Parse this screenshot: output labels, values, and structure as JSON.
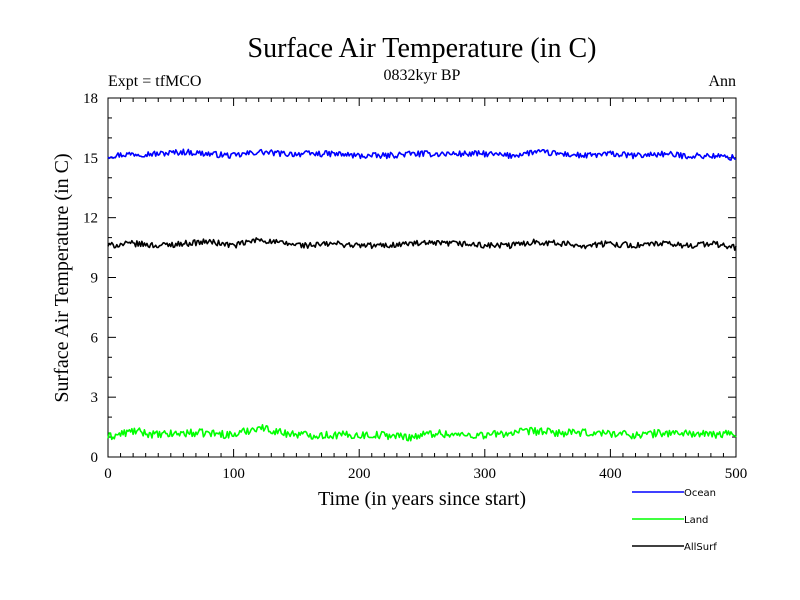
{
  "chart_data": {
    "type": "line",
    "title": "Surface Air Temperature (in C)",
    "subtitle": "0832kyr BP",
    "experiment_label": "Expt = tfMCO",
    "season_label": "Ann",
    "xlabel": "Time (in years since start)",
    "ylabel": "Surface Air Temperature (in C)",
    "xlim": [
      0,
      500
    ],
    "ylim": [
      0,
      18
    ],
    "xticks": [
      0,
      100,
      200,
      300,
      400,
      500
    ],
    "yticks": [
      0,
      3,
      6,
      9,
      12,
      15,
      18
    ],
    "grid": false,
    "legend_position": "below-right",
    "series": [
      {
        "name": "Ocean",
        "color": "#0000ff",
        "mean": 15.2,
        "amplitude": 0.15,
        "x": [
          0,
          20,
          40,
          60,
          80,
          100,
          120,
          140,
          160,
          180,
          200,
          220,
          240,
          260,
          280,
          300,
          320,
          340,
          360,
          380,
          400,
          420,
          440,
          460,
          480,
          500
        ],
        "values": [
          15.1,
          15.2,
          15.2,
          15.3,
          15.2,
          15.1,
          15.3,
          15.2,
          15.2,
          15.2,
          15.1,
          15.1,
          15.2,
          15.2,
          15.2,
          15.2,
          15.1,
          15.3,
          15.2,
          15.1,
          15.2,
          15.1,
          15.2,
          15.1,
          15.1,
          15.0
        ]
      },
      {
        "name": "Land",
        "color": "#00ff00",
        "mean": 1.2,
        "amplitude": 0.2,
        "x": [
          0,
          20,
          40,
          60,
          80,
          100,
          120,
          140,
          160,
          180,
          200,
          220,
          240,
          260,
          280,
          300,
          320,
          340,
          360,
          380,
          400,
          420,
          440,
          460,
          480,
          500
        ],
        "values": [
          1.0,
          1.3,
          1.1,
          1.2,
          1.2,
          1.1,
          1.5,
          1.2,
          1.1,
          1.1,
          1.1,
          1.1,
          1.0,
          1.2,
          1.1,
          1.1,
          1.2,
          1.3,
          1.2,
          1.2,
          1.2,
          1.1,
          1.2,
          1.2,
          1.1,
          1.2
        ]
      },
      {
        "name": "AllSurf",
        "color": "#000000",
        "mean": 10.7,
        "amplitude": 0.15,
        "x": [
          0,
          20,
          40,
          60,
          80,
          100,
          120,
          140,
          160,
          180,
          200,
          220,
          240,
          260,
          280,
          300,
          320,
          340,
          360,
          380,
          400,
          420,
          440,
          460,
          480,
          500
        ],
        "values": [
          10.6,
          10.7,
          10.6,
          10.7,
          10.8,
          10.6,
          10.9,
          10.7,
          10.6,
          10.7,
          10.6,
          10.6,
          10.7,
          10.7,
          10.7,
          10.6,
          10.6,
          10.8,
          10.7,
          10.6,
          10.7,
          10.6,
          10.7,
          10.6,
          10.7,
          10.5
        ]
      }
    ]
  }
}
